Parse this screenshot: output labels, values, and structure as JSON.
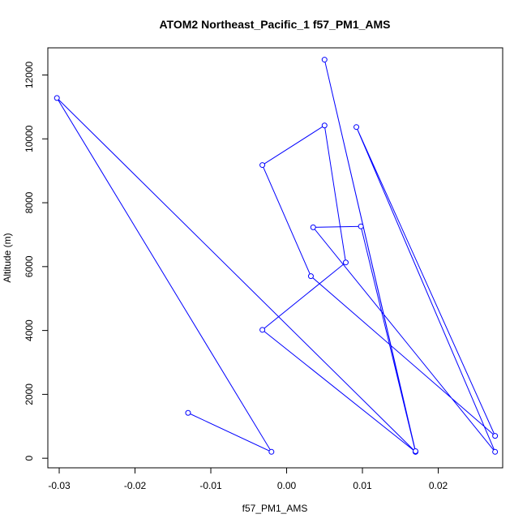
{
  "chart_data": {
    "type": "line",
    "title": "ATOM2 Northeast_Pacific_1 f57_PM1_AMS",
    "xlabel": "f57_PM1_AMS",
    "ylabel": "Altitude (m)",
    "xlim": [
      -0.0315,
      0.0285
    ],
    "ylim": [
      -300,
      12850
    ],
    "x_ticks": [
      -0.03,
      -0.02,
      -0.01,
      0.0,
      0.01,
      0.02
    ],
    "x_tick_labels": [
      "-0.03",
      "-0.02",
      "-0.01",
      "0.00",
      "0.01",
      "0.02"
    ],
    "y_ticks": [
      0,
      2000,
      4000,
      6000,
      8000,
      10000,
      12000
    ],
    "y_tick_labels": [
      "0",
      "2000",
      "4000",
      "6000",
      "8000",
      "10000",
      "12000"
    ],
    "grid": false,
    "legend": "none",
    "series": [
      {
        "color": "#0000ff",
        "marker": "open-circle",
        "points": [
          {
            "x": -0.013,
            "y": 1420
          },
          {
            "x": -0.002,
            "y": 200
          },
          {
            "x": -0.0303,
            "y": 11280
          },
          {
            "x": 0.017,
            "y": 200
          },
          {
            "x": -0.0032,
            "y": 4020
          },
          {
            "x": 0.0078,
            "y": 6130
          },
          {
            "x": 0.005,
            "y": 10420
          },
          {
            "x": -0.0032,
            "y": 9180
          },
          {
            "x": 0.0032,
            "y": 5700
          },
          {
            "x": 0.0275,
            "y": 700
          },
          {
            "x": 0.0092,
            "y": 10370
          },
          {
            "x": 0.0275,
            "y": 200
          },
          {
            "x": 0.0035,
            "y": 7230
          },
          {
            "x": 0.0098,
            "y": 7260
          },
          {
            "x": 0.017,
            "y": 200
          },
          {
            "x": 0.005,
            "y": 12480
          },
          {
            "x": 0.017,
            "y": 220
          }
        ]
      }
    ]
  }
}
